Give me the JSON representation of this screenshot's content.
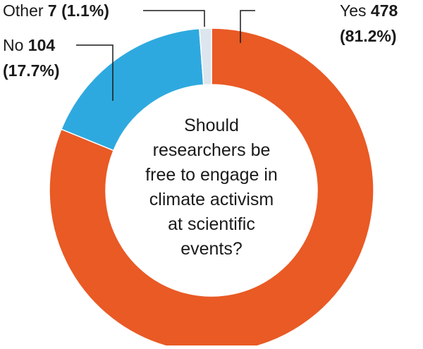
{
  "chart_data": {
    "type": "pie",
    "center_text": [
      "Should",
      "researchers be",
      "free to engage in",
      "climate activism",
      "at scientific",
      "events?"
    ],
    "slices": [
      {
        "label": "Yes",
        "value": 478,
        "percent_label": "(81.2%)",
        "color": "#e95a25"
      },
      {
        "label": "No",
        "value": 104,
        "percent_label": "(17.7%)",
        "color": "#2ea9df"
      },
      {
        "label": "Other",
        "value": 7,
        "percent_label": "(1.1%)",
        "color": "#dde6ee"
      }
    ]
  }
}
